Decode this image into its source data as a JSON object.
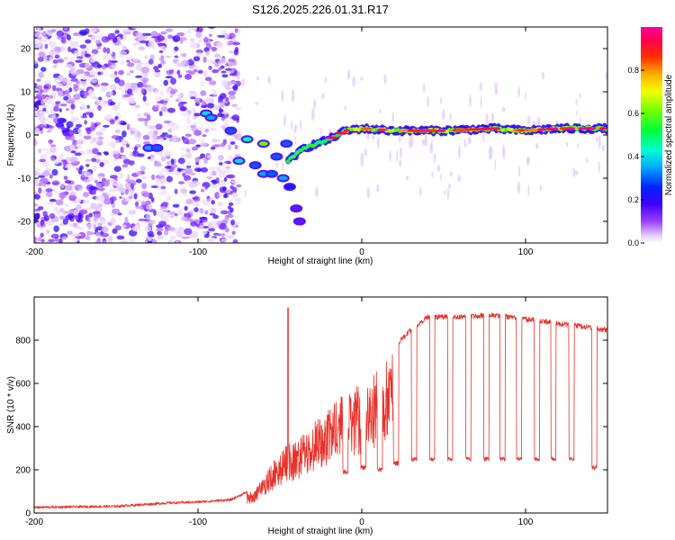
{
  "title": "S126.2025.226.01.31.R17",
  "chart_data": [
    {
      "type": "heatmap",
      "name": "spectrogram",
      "xlabel": "Height of straight line (km)",
      "ylabel": "Frequency (Hz)",
      "xlim": [
        -200,
        150
      ],
      "ylim": [
        -25,
        25
      ],
      "xticks": [
        -200,
        -100,
        0,
        100
      ],
      "xtick_labels": [
        "-200",
        "-100",
        "0",
        "100"
      ],
      "yticks": [
        -20,
        -10,
        0,
        10,
        20
      ],
      "ytick_labels": [
        "-20",
        "-10",
        "0",
        "10",
        "20"
      ],
      "colorbar": {
        "label": "Normalized spectral amplitude",
        "range": [
          0,
          1
        ],
        "ticks": [
          0,
          0.2,
          0.4,
          0.6,
          0.8
        ],
        "tick_labels": [
          "0.0",
          "0.2",
          "0.4",
          "0.6",
          "0.8"
        ]
      },
      "ridge": {
        "description_points_x": [
          -130,
          -95,
          -80,
          -65,
          -55,
          -50,
          -45,
          -35,
          -20,
          -10,
          0,
          20,
          50,
          80,
          100,
          120,
          150
        ],
        "frequency_hz": [
          -3,
          5,
          2,
          -1,
          -6,
          -3,
          -6,
          -3,
          -1,
          1,
          1.5,
          1,
          1,
          1.5,
          1,
          1.5,
          1.5
        ]
      }
    },
    {
      "type": "line",
      "name": "snr",
      "xlabel": "Height of straight line (km)",
      "ylabel": "SNR (10 * v/v)",
      "xlim": [
        -200,
        150
      ],
      "ylim": [
        0,
        1000
      ],
      "xticks": [
        -200,
        -100,
        0,
        100
      ],
      "xtick_labels": [
        "-200",
        "-100",
        "0",
        "100"
      ],
      "yticks": [
        0,
        200,
        400,
        600,
        800
      ],
      "ytick_labels": [
        "0",
        "200",
        "400",
        "600",
        "800"
      ],
      "series_color": "#e8312a",
      "envelope_x": [
        -200,
        -150,
        -120,
        -100,
        -80,
        -65,
        -55,
        -48,
        -45,
        -40,
        -30,
        -20,
        -10,
        0,
        10,
        20,
        30,
        40,
        60,
        80,
        100,
        120,
        140,
        150
      ],
      "envelope_y": [
        20,
        25,
        40,
        45,
        55,
        110,
        230,
        300,
        320,
        330,
        420,
        480,
        560,
        600,
        680,
        780,
        860,
        920,
        920,
        930,
        910,
        890,
        870,
        860
      ],
      "spike": {
        "x": -45,
        "y": 950
      },
      "dropouts_x": [
        -10,
        1,
        11,
        21,
        32,
        43,
        54,
        65,
        76,
        86,
        96,
        107,
        117,
        128,
        142
      ],
      "dropout_levels": [
        190,
        210,
        200,
        230,
        250,
        250,
        250,
        250,
        250,
        250,
        250,
        250,
        250,
        250,
        210
      ]
    }
  ]
}
